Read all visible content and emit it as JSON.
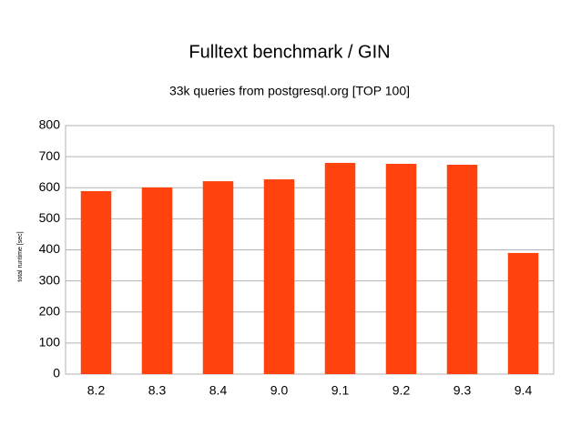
{
  "chart_data": {
    "type": "bar",
    "title": "Fulltext benchmark / GIN",
    "subtitle": "33k queries from postgresql.org [TOP 100]",
    "y_label": "total runtime [sec]",
    "categories": [
      "8.2",
      "8.3",
      "8.4",
      "9.0",
      "9.1",
      "9.2",
      "9.3",
      "9.4"
    ],
    "values": [
      589,
      601,
      621,
      627,
      680,
      677,
      674,
      390
    ],
    "color": "#ff420e",
    "ylim": [
      0,
      800
    ],
    "yticks": [
      0,
      100,
      200,
      300,
      400,
      500,
      600,
      700,
      800
    ],
    "grid": true
  }
}
